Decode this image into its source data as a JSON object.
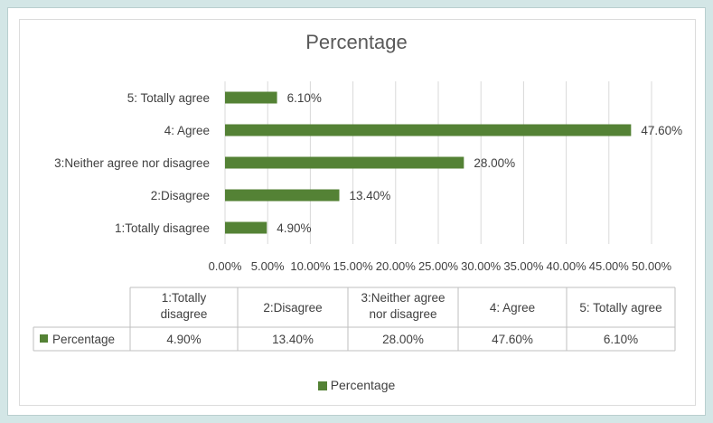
{
  "chart_data": {
    "type": "bar",
    "orientation": "horizontal",
    "title": "Percentage",
    "categories": [
      "5: Totally agree",
      "4: Agree",
      "3:Neither agree nor disagree",
      "2:Disagree",
      "1:Totally disagree"
    ],
    "series": [
      {
        "name": "Percentage",
        "values": [
          6.1,
          47.6,
          28.0,
          13.4,
          4.9
        ],
        "labels": [
          "6.10%",
          "47.60%",
          "28.00%",
          "13.40%",
          "4.90%"
        ]
      }
    ],
    "xlim": [
      0,
      50
    ],
    "xticks": [
      "0.00%",
      "5.00%",
      "10.00%",
      "15.00%",
      "20.00%",
      "25.00%",
      "30.00%",
      "35.00%",
      "40.00%",
      "45.00%",
      "50.00%"
    ],
    "grid": true,
    "bar_color": "#548235",
    "legend": "bottom",
    "data_table": {
      "headers": [
        "1:Totally disagree",
        "2:Disagree",
        "3:Neither agree nor disagree",
        "4: Agree",
        "5: Totally agree"
      ],
      "row_label": "Percentage",
      "values": [
        "4.90%",
        "13.40%",
        "28.00%",
        "47.60%",
        "6.10%"
      ]
    }
  },
  "legend_label": "Percentage"
}
